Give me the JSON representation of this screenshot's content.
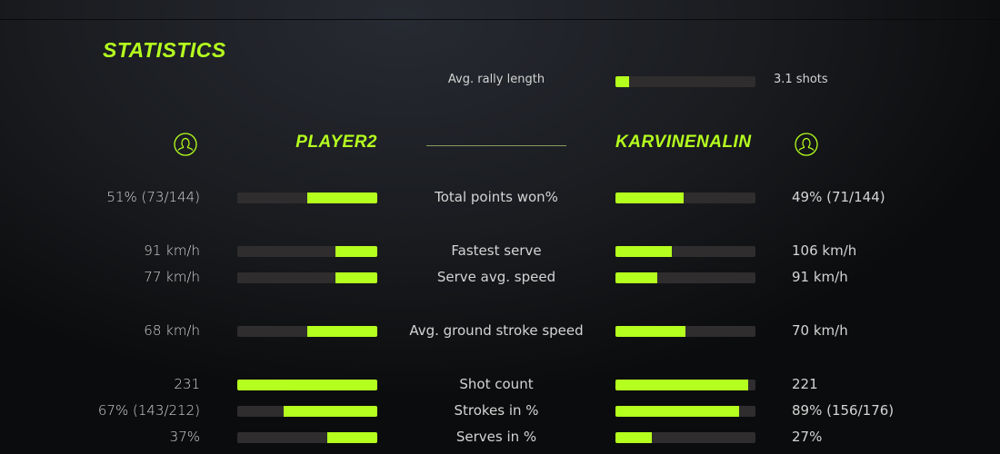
{
  "title": "STATISTICS",
  "accent": "#b5ff1e",
  "rally": {
    "label": "Avg. rally length",
    "value": "3.1 shots",
    "fill": 0.1
  },
  "players": {
    "left": {
      "name": "PLAYER2",
      "icon": "user-circle-icon"
    },
    "right": {
      "name": "KARVINENALIN",
      "icon": "user-circle-icon"
    }
  },
  "stats": [
    {
      "label": "Total points won%",
      "left": "51% (73/144)",
      "right": "49% (71/144)",
      "left_fill": 0.5,
      "right_fill": 0.49
    },
    {
      "label": "Fastest serve",
      "left": "91 km/h",
      "right": "106 km/h",
      "left_fill": 0.3,
      "right_fill": 0.4
    },
    {
      "label": "Serve avg. speed",
      "left": "77 km/h",
      "right": "91 km/h",
      "left_fill": 0.3,
      "right_fill": 0.3
    },
    {
      "label": "Avg. ground stroke speed",
      "left": "68 km/h",
      "right": "70 km/h",
      "left_fill": 0.5,
      "right_fill": 0.5
    },
    {
      "label": "Shot count",
      "left": "231",
      "right": "221",
      "left_fill": 1.0,
      "right_fill": 0.95
    },
    {
      "label": "Strokes in %",
      "left": "67% (143/212)",
      "right": "89% (156/176)",
      "left_fill": 0.67,
      "right_fill": 0.88
    },
    {
      "label": "Serves in %",
      "left": "37%",
      "right": "27%",
      "left_fill": 0.36,
      "right_fill": 0.26
    }
  ]
}
